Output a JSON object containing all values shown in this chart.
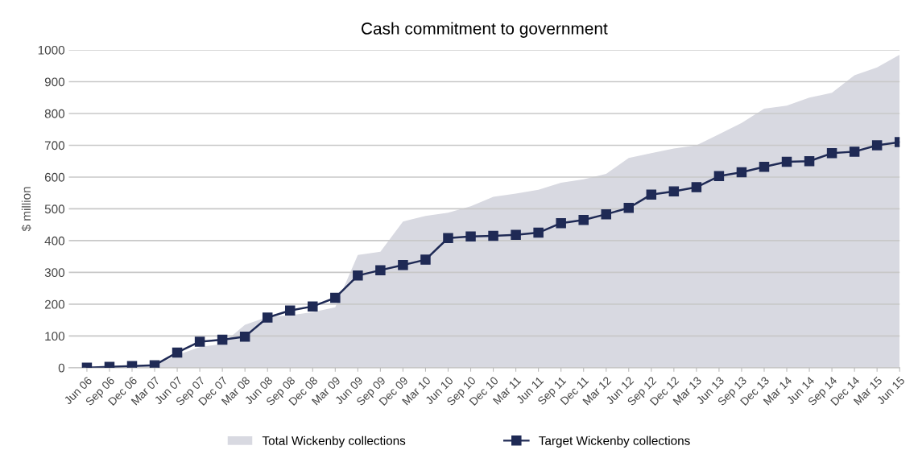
{
  "chart_data": {
    "type": "line",
    "title": "Cash commitment to government",
    "ylabel": "$ million",
    "categories": [
      "Jun 06",
      "Sep 06",
      "Dec 06",
      "Mar 07",
      "Jun 07",
      "Sep 07",
      "Dec 07",
      "Mar 08",
      "Jun 08",
      "Sep 08",
      "Dec 08",
      "Mar 09",
      "Jun 09",
      "Sep 09",
      "Dec 09",
      "Mar 10",
      "Jun 10",
      "Sep 10",
      "Dec 10",
      "Mar 11",
      "Jun 11",
      "Sep 11",
      "Dec 11",
      "Mar 12",
      "Jun 12",
      "Sep 12",
      "Dec 12",
      "Mar 13",
      "Jun 13",
      "Sep 13",
      "Dec 13",
      "Mar 14",
      "Jun 14",
      "Sep 14",
      "Dec 14",
      "Mar 15",
      "Jun 15"
    ],
    "series": [
      {
        "name": "Total Wickenby collections",
        "type": "area",
        "color": "#d8d9e1",
        "values": [
          0,
          2,
          4,
          6,
          40,
          65,
          75,
          135,
          160,
          165,
          175,
          190,
          355,
          365,
          460,
          478,
          488,
          508,
          538,
          548,
          560,
          582,
          593,
          610,
          660,
          675,
          690,
          700,
          735,
          770,
          815,
          825,
          850,
          865,
          920,
          945,
          985
        ]
      },
      {
        "name": "Target Wickenby collections",
        "color": "#1f2a55",
        "marker": "square",
        "values": [
          0,
          3,
          5,
          8,
          48,
          82,
          88,
          98,
          158,
          180,
          193,
          220,
          290,
          307,
          323,
          340,
          408,
          413,
          415,
          418,
          425,
          455,
          465,
          483,
          503,
          545,
          555,
          568,
          603,
          615,
          632,
          648,
          650,
          675,
          680,
          700,
          710
        ]
      }
    ],
    "ylim": [
      0,
      1000
    ],
    "yticks": [
      0,
      100,
      200,
      300,
      400,
      500,
      600,
      700,
      800,
      900,
      1000
    ],
    "grid": "y",
    "legend": "bottom"
  }
}
